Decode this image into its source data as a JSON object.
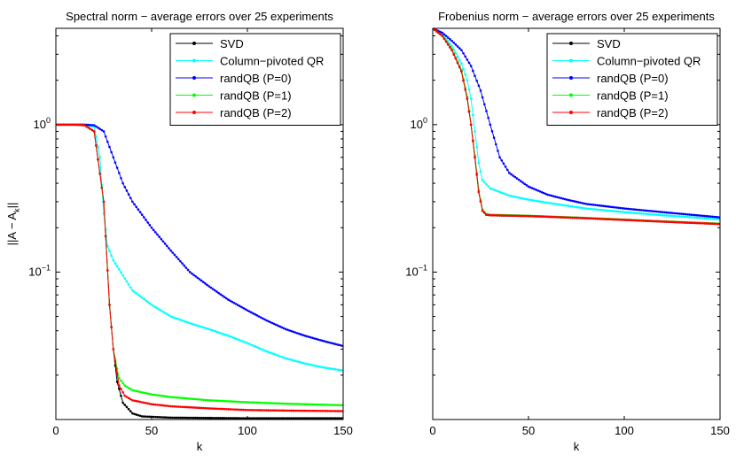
{
  "chart_data": [
    {
      "type": "line",
      "title": "Spectral norm − average errors over 25 experiments",
      "xlabel": "k",
      "ylabel": {
        "base": "||A − A",
        "sub": "k",
        "tail": "||"
      },
      "xlim": [
        0,
        150
      ],
      "ylim": [
        0.01,
        4.5
      ],
      "yscale": "log",
      "xticks": [
        0,
        50,
        100,
        150
      ],
      "yticks": [
        {
          "value": 1,
          "base": "10",
          "exp": "0"
        },
        {
          "value": 0.1,
          "base": "10",
          "exp": "−1"
        }
      ],
      "legend_position": "top-right",
      "series": [
        {
          "name": "SVD",
          "color": "#000000",
          "points": [
            [
              0,
              1
            ],
            [
              10,
              1
            ],
            [
              15,
              0.99
            ],
            [
              20,
              0.9
            ],
            [
              25,
              0.3
            ],
            [
              28,
              0.06
            ],
            [
              30,
              0.03
            ],
            [
              32,
              0.018
            ],
            [
              35,
              0.013
            ],
            [
              40,
              0.011
            ],
            [
              45,
              0.0105
            ],
            [
              60,
              0.0103
            ],
            [
              100,
              0.0102
            ],
            [
              150,
              0.0102
            ]
          ]
        },
        {
          "name": "Column−pivoted QR",
          "color": "#00ffff",
          "points": [
            [
              0,
              1
            ],
            [
              15,
              1
            ],
            [
              20,
              0.97
            ],
            [
              23,
              0.6
            ],
            [
              25,
              0.25
            ],
            [
              27,
              0.15
            ],
            [
              30,
              0.12
            ],
            [
              35,
              0.095
            ],
            [
              40,
              0.075
            ],
            [
              50,
              0.06
            ],
            [
              60,
              0.05
            ],
            [
              70,
              0.045
            ],
            [
              80,
              0.041
            ],
            [
              90,
              0.037
            ],
            [
              100,
              0.033
            ],
            [
              110,
              0.029
            ],
            [
              120,
              0.026
            ],
            [
              130,
              0.024
            ],
            [
              140,
              0.0225
            ],
            [
              150,
              0.0215
            ]
          ]
        },
        {
          "name": "randQB (P=0)",
          "color": "#0000ff",
          "points": [
            [
              0,
              1
            ],
            [
              15,
              1
            ],
            [
              20,
              0.99
            ],
            [
              25,
              0.9
            ],
            [
              30,
              0.6
            ],
            [
              35,
              0.4
            ],
            [
              40,
              0.3
            ],
            [
              50,
              0.2
            ],
            [
              60,
              0.14
            ],
            [
              70,
              0.1
            ],
            [
              80,
              0.08
            ],
            [
              90,
              0.065
            ],
            [
              100,
              0.055
            ],
            [
              110,
              0.047
            ],
            [
              120,
              0.041
            ],
            [
              130,
              0.037
            ],
            [
              140,
              0.034
            ],
            [
              150,
              0.0315
            ]
          ]
        },
        {
          "name": "randQB (P=1)",
          "color": "#00ff00",
          "points": [
            [
              0,
              1
            ],
            [
              10,
              1
            ],
            [
              15,
              0.99
            ],
            [
              20,
              0.9
            ],
            [
              25,
              0.3
            ],
            [
              28,
              0.06
            ],
            [
              30,
              0.03
            ],
            [
              33,
              0.019
            ],
            [
              36,
              0.017
            ],
            [
              40,
              0.0158
            ],
            [
              50,
              0.0148
            ],
            [
              60,
              0.0142
            ],
            [
              80,
              0.0135
            ],
            [
              100,
              0.0131
            ],
            [
              120,
              0.0128
            ],
            [
              150,
              0.0125
            ]
          ]
        },
        {
          "name": "randQB (P=2)",
          "color": "#ff0000",
          "points": [
            [
              0,
              1
            ],
            [
              10,
              1
            ],
            [
              15,
              0.99
            ],
            [
              20,
              0.9
            ],
            [
              25,
              0.3
            ],
            [
              28,
              0.06
            ],
            [
              30,
              0.03
            ],
            [
              33,
              0.017
            ],
            [
              36,
              0.0145
            ],
            [
              40,
              0.0135
            ],
            [
              50,
              0.0127
            ],
            [
              60,
              0.0123
            ],
            [
              80,
              0.0119
            ],
            [
              100,
              0.0116
            ],
            [
              120,
              0.0115
            ],
            [
              150,
              0.0114
            ]
          ]
        }
      ]
    },
    {
      "type": "line",
      "title": "Frobenius norm − average errors over 25 experiments",
      "xlabel": "k",
      "xlim": [
        0,
        150
      ],
      "ylim": [
        0.01,
        4.5
      ],
      "yscale": "log",
      "xticks": [
        0,
        50,
        100,
        150
      ],
      "yticks": [
        {
          "value": 1,
          "base": "10",
          "exp": "0"
        },
        {
          "value": 0.1,
          "base": "10",
          "exp": "−1"
        }
      ],
      "legend_position": "top-right",
      "series": [
        {
          "name": "SVD",
          "color": "#000000",
          "points": [
            [
              0,
              4.5
            ],
            [
              5,
              4
            ],
            [
              10,
              3.2
            ],
            [
              15,
              2.3
            ],
            [
              18,
              1.5
            ],
            [
              20,
              1
            ],
            [
              22,
              0.6
            ],
            [
              24,
              0.35
            ],
            [
              26,
              0.26
            ],
            [
              28,
              0.245
            ],
            [
              30,
              0.243
            ],
            [
              50,
              0.24
            ],
            [
              80,
              0.232
            ],
            [
              100,
              0.226
            ],
            [
              120,
              0.22
            ],
            [
              150,
              0.212
            ]
          ]
        },
        {
          "name": "Column−pivoted QR",
          "color": "#00ffff",
          "points": [
            [
              0,
              4.5
            ],
            [
              5,
              4.1
            ],
            [
              10,
              3.4
            ],
            [
              15,
              2.6
            ],
            [
              18,
              2
            ],
            [
              20,
              1.5
            ],
            [
              22,
              0.9
            ],
            [
              24,
              0.55
            ],
            [
              26,
              0.42
            ],
            [
              30,
              0.37
            ],
            [
              40,
              0.33
            ],
            [
              50,
              0.31
            ],
            [
              60,
              0.295
            ],
            [
              80,
              0.27
            ],
            [
              100,
              0.255
            ],
            [
              120,
              0.243
            ],
            [
              150,
              0.228
            ]
          ]
        },
        {
          "name": "randQB (P=0)",
          "color": "#0000ff",
          "points": [
            [
              0,
              4.5
            ],
            [
              5,
              4.2
            ],
            [
              10,
              3.7
            ],
            [
              15,
              3.2
            ],
            [
              20,
              2.5
            ],
            [
              25,
              1.7
            ],
            [
              30,
              1
            ],
            [
              35,
              0.6
            ],
            [
              40,
              0.47
            ],
            [
              50,
              0.38
            ],
            [
              60,
              0.335
            ],
            [
              70,
              0.31
            ],
            [
              80,
              0.29
            ],
            [
              100,
              0.27
            ],
            [
              120,
              0.255
            ],
            [
              150,
              0.235
            ]
          ]
        },
        {
          "name": "randQB (P=1)",
          "color": "#00ff00",
          "points": [
            [
              0,
              4.5
            ],
            [
              5,
              4
            ],
            [
              10,
              3.25
            ],
            [
              15,
              2.35
            ],
            [
              18,
              1.55
            ],
            [
              20,
              1
            ],
            [
              22,
              0.62
            ],
            [
              24,
              0.36
            ],
            [
              26,
              0.265
            ],
            [
              28,
              0.248
            ],
            [
              30,
              0.245
            ],
            [
              50,
              0.241
            ],
            [
              80,
              0.233
            ],
            [
              100,
              0.227
            ],
            [
              120,
              0.221
            ],
            [
              150,
              0.213
            ]
          ]
        },
        {
          "name": "randQB (P=2)",
          "color": "#ff0000",
          "points": [
            [
              0,
              4.5
            ],
            [
              5,
              4
            ],
            [
              10,
              3.2
            ],
            [
              15,
              2.3
            ],
            [
              18,
              1.5
            ],
            [
              20,
              1
            ],
            [
              22,
              0.6
            ],
            [
              24,
              0.35
            ],
            [
              26,
              0.26
            ],
            [
              28,
              0.245
            ],
            [
              30,
              0.243
            ],
            [
              50,
              0.24
            ],
            [
              80,
              0.232
            ],
            [
              100,
              0.226
            ],
            [
              120,
              0.22
            ],
            [
              150,
              0.212
            ]
          ]
        }
      ]
    }
  ]
}
